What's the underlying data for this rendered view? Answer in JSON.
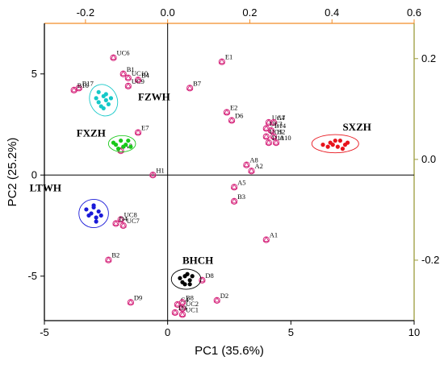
{
  "chart_data": {
    "type": "scatter",
    "title": "",
    "xlabel": "PC1 (35.6%)",
    "ylabel": "PC2 (25.2%)",
    "xlim": [
      -5,
      10
    ],
    "ylim": [
      -7.2,
      7.5
    ],
    "x_ticks": [
      "-5",
      "0",
      "5",
      "10"
    ],
    "y_ticks": [
      "-5",
      "0",
      "5"
    ],
    "top_ticks": [
      "-0.2",
      "0.0",
      "0.2",
      "0.4",
      "0.6"
    ],
    "right_ticks": [
      "0.2",
      "0.0",
      "-0.2"
    ],
    "colors": {
      "loading": "#d6287d",
      "FZWH": "#16c8c8",
      "FXZH": "#18c818",
      "SXZH": "#e8141c",
      "LTWH": "#1a1ad8",
      "BHCH": "#000000",
      "top_axis": "#f28c28",
      "right_axis": "#9c9c3c"
    },
    "series": [
      {
        "name": "FZWH",
        "points": [
          [
            -2.8,
            3.6
          ],
          [
            -2.6,
            3.9
          ],
          [
            -2.7,
            3.4
          ],
          [
            -2.5,
            3.7
          ],
          [
            -2.4,
            3.5
          ],
          [
            -2.9,
            3.8
          ],
          [
            -2.6,
            3.3
          ],
          [
            -2.3,
            3.8
          ],
          [
            -2.8,
            4.1
          ],
          [
            -2.5,
            4.0
          ]
        ],
        "ellipse": {
          "cx": -2.6,
          "cy": 3.7,
          "rx": 0.55,
          "ry": 0.8,
          "angle": -25
        }
      },
      {
        "name": "FXZH",
        "points": [
          [
            -2.1,
            1.5
          ],
          [
            -1.9,
            1.7
          ],
          [
            -1.7,
            1.5
          ],
          [
            -1.8,
            1.4
          ],
          [
            -2.0,
            1.3
          ],
          [
            -1.6,
            1.7
          ],
          [
            -1.5,
            1.4
          ],
          [
            -2.2,
            1.6
          ]
        ],
        "ellipse": {
          "cx": -1.85,
          "cy": 1.55,
          "rx": 0.55,
          "ry": 0.4,
          "angle": 0
        }
      },
      {
        "name": "SXZH",
        "points": [
          [
            6.3,
            1.5
          ],
          [
            6.6,
            1.6
          ],
          [
            6.9,
            1.4
          ],
          [
            7.0,
            1.7
          ],
          [
            7.2,
            1.5
          ],
          [
            6.8,
            1.7
          ],
          [
            7.3,
            1.6
          ],
          [
            6.5,
            1.4
          ],
          [
            7.1,
            1.3
          ],
          [
            6.7,
            1.5
          ]
        ],
        "ellipse": {
          "cx": 6.8,
          "cy": 1.55,
          "rx": 0.95,
          "ry": 0.45,
          "angle": 0
        }
      },
      {
        "name": "LTWH",
        "points": [
          [
            -3.3,
            -1.7
          ],
          [
            -3.1,
            -1.9
          ],
          [
            -2.9,
            -2.1
          ],
          [
            -3.0,
            -1.5
          ],
          [
            -2.8,
            -1.8
          ],
          [
            -3.2,
            -2.0
          ],
          [
            -2.9,
            -2.3
          ],
          [
            -3.0,
            -1.6
          ],
          [
            -2.7,
            -2.0
          ]
        ],
        "ellipse": {
          "cx": -3.0,
          "cy": -1.9,
          "rx": 0.6,
          "ry": 0.7,
          "angle": 0
        }
      },
      {
        "name": "BHCH",
        "points": [
          [
            0.5,
            -5.1
          ],
          [
            0.7,
            -5.0
          ],
          [
            0.9,
            -5.2
          ],
          [
            0.6,
            -5.3
          ],
          [
            0.8,
            -4.9
          ],
          [
            1.0,
            -5.0
          ],
          [
            0.7,
            -5.4
          ],
          [
            0.9,
            -5.4
          ]
        ],
        "ellipse": {
          "cx": 0.75,
          "cy": -5.15,
          "rx": 0.6,
          "ry": 0.5,
          "angle": 0
        }
      }
    ],
    "group_labels": [
      {
        "text": "FZWH",
        "x": -1.2,
        "y": 3.7
      },
      {
        "text": "FXZH",
        "x": -3.7,
        "y": 1.9
      },
      {
        "text": "SXZH",
        "x": 7.1,
        "y": 2.2
      },
      {
        "text": "LTWH",
        "x": -5.6,
        "y": -0.8
      },
      {
        "text": "BHCH",
        "x": 0.6,
        "y": -4.4
      }
    ],
    "loadings": [
      {
        "label": "UC6",
        "x": -2.2,
        "y": 5.8
      },
      {
        "label": "B1",
        "x": -1.8,
        "y": 5.0
      },
      {
        "label": "UC10",
        "x": -1.6,
        "y": 4.8
      },
      {
        "label": "B4",
        "x": -1.2,
        "y": 4.7
      },
      {
        "label": "UC9",
        "x": -1.6,
        "y": 4.4
      },
      {
        "label": "B17",
        "x": -3.6,
        "y": 4.3
      },
      {
        "label": "B16",
        "x": -3.8,
        "y": 4.2
      },
      {
        "label": "E7",
        "x": -1.2,
        "y": 2.1
      },
      {
        "label": "A3",
        "x": -1.9,
        "y": 1.2
      },
      {
        "label": "H1",
        "x": -0.6,
        "y": 0.0
      },
      {
        "label": "UC8",
        "x": -1.9,
        "y": -2.2
      },
      {
        "label": "D4",
        "x": -2.1,
        "y": -2.4
      },
      {
        "label": "UC7",
        "x": -1.8,
        "y": -2.5
      },
      {
        "label": "B2",
        "x": -2.4,
        "y": -4.2
      },
      {
        "label": "D9",
        "x": -1.5,
        "y": -6.3
      },
      {
        "label": "E1",
        "x": 2.2,
        "y": 5.6
      },
      {
        "label": "B7",
        "x": 0.9,
        "y": 4.3
      },
      {
        "label": "E2",
        "x": 2.4,
        "y": 3.1
      },
      {
        "label": "D6",
        "x": 2.6,
        "y": 2.7
      },
      {
        "label": "UC4",
        "x": 4.1,
        "y": 2.6
      },
      {
        "label": "A7",
        "x": 4.3,
        "y": 2.6
      },
      {
        "label": "UC3",
        "x": 4.0,
        "y": 2.3
      },
      {
        "label": "B14",
        "x": 4.2,
        "y": 2.2
      },
      {
        "label": "UC5",
        "x": 4.0,
        "y": 1.9
      },
      {
        "label": "H2",
        "x": 4.3,
        "y": 1.9
      },
      {
        "label": "D10",
        "x": 4.1,
        "y": 1.6
      },
      {
        "label": "A10",
        "x": 4.4,
        "y": 1.6
      },
      {
        "label": "A8",
        "x": 3.2,
        "y": 0.5
      },
      {
        "label": "A2",
        "x": 3.4,
        "y": 0.2
      },
      {
        "label": "A5",
        "x": 2.7,
        "y": -0.6
      },
      {
        "label": "B3",
        "x": 2.7,
        "y": -1.3
      },
      {
        "label": "A1",
        "x": 4.0,
        "y": -3.2
      },
      {
        "label": "D8",
        "x": 1.4,
        "y": -5.2
      },
      {
        "label": "D2",
        "x": 2.0,
        "y": -6.2
      },
      {
        "label": "C4",
        "x": 0.4,
        "y": -6.4
      },
      {
        "label": "B8",
        "x": 0.6,
        "y": -6.3
      },
      {
        "label": "UC2",
        "x": 0.6,
        "y": -6.6
      },
      {
        "label": "D3",
        "x": 0.3,
        "y": -6.8
      },
      {
        "label": "UC1",
        "x": 0.6,
        "y": -6.9
      }
    ]
  }
}
